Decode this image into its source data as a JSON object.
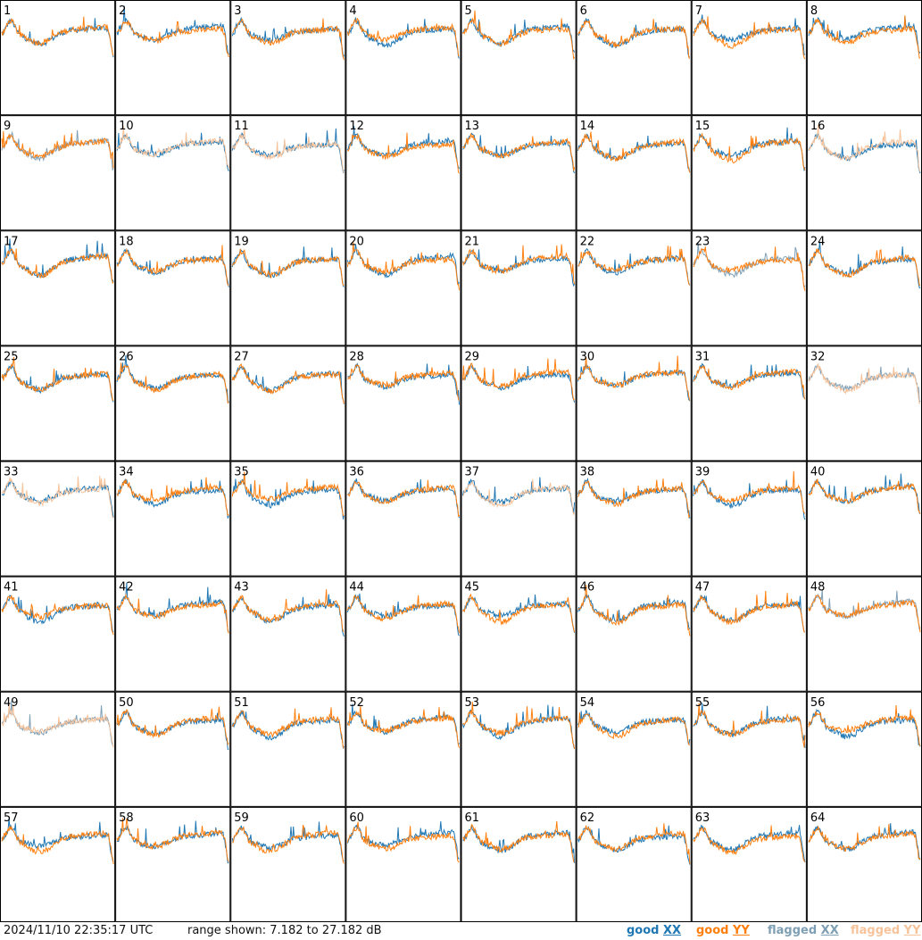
{
  "footer": {
    "timestamp": "2024/11/10 22:35:17 UTC",
    "range": "range shown: 7.182 to 27.182 dB"
  },
  "legend": [
    {
      "label": "good",
      "pol": "XX",
      "color": "#1f77b4"
    },
    {
      "label": "good",
      "pol": "YY",
      "color": "#ff7f0e"
    },
    {
      "label": "flagged",
      "pol": "XX",
      "color": "#7f9fb5"
    },
    {
      "label": "flagged",
      "pol": "YY",
      "color": "#f7c39b"
    }
  ],
  "chart_data": {
    "type": "line",
    "grid": {
      "rows": 8,
      "cols": 8
    },
    "ylim": [
      7.182,
      27.182
    ],
    "yunit": "dB",
    "panels": [
      {
        "id": "1",
        "xx": "good",
        "yy": "good"
      },
      {
        "id": "2",
        "xx": "good",
        "yy": "good"
      },
      {
        "id": "3",
        "xx": "good",
        "yy": "good"
      },
      {
        "id": "4",
        "xx": "good",
        "yy": "good"
      },
      {
        "id": "5",
        "xx": "good",
        "yy": "good"
      },
      {
        "id": "6",
        "xx": "good",
        "yy": "good"
      },
      {
        "id": "7",
        "xx": "good",
        "yy": "good"
      },
      {
        "id": "8",
        "xx": "good",
        "yy": "good"
      },
      {
        "id": "9",
        "xx": "flagged",
        "yy": "good"
      },
      {
        "id": "10",
        "xx": "good",
        "yy": "flagged"
      },
      {
        "id": "11",
        "xx": "good",
        "yy": "flagged"
      },
      {
        "id": "12",
        "xx": "good",
        "yy": "good"
      },
      {
        "id": "13",
        "xx": "good",
        "yy": "good"
      },
      {
        "id": "14",
        "xx": "good",
        "yy": "good"
      },
      {
        "id": "15",
        "xx": "good",
        "yy": "good"
      },
      {
        "id": "16",
        "xx": "good",
        "yy": "flagged"
      },
      {
        "id": "17",
        "xx": "good",
        "yy": "good"
      },
      {
        "id": "18",
        "xx": "good",
        "yy": "good"
      },
      {
        "id": "19",
        "xx": "good",
        "yy": "good"
      },
      {
        "id": "20",
        "xx": "good",
        "yy": "good"
      },
      {
        "id": "21",
        "xx": "good",
        "yy": "good"
      },
      {
        "id": "22",
        "xx": "good",
        "yy": "good"
      },
      {
        "id": "23",
        "xx": "flagged",
        "yy": "good"
      },
      {
        "id": "24",
        "xx": "good",
        "yy": "good"
      },
      {
        "id": "25",
        "xx": "good",
        "yy": "good"
      },
      {
        "id": "26",
        "xx": "good",
        "yy": "good"
      },
      {
        "id": "27",
        "xx": "good",
        "yy": "good"
      },
      {
        "id": "28",
        "xx": "good",
        "yy": "good"
      },
      {
        "id": "29",
        "xx": "good",
        "yy": "good"
      },
      {
        "id": "30",
        "xx": "good",
        "yy": "good"
      },
      {
        "id": "31",
        "xx": "good",
        "yy": "good"
      },
      {
        "id": "32",
        "xx": "flagged",
        "yy": "flagged"
      },
      {
        "id": "33",
        "xx": "good",
        "yy": "flagged"
      },
      {
        "id": "34",
        "xx": "good",
        "yy": "good"
      },
      {
        "id": "35",
        "xx": "good",
        "yy": "good"
      },
      {
        "id": "36",
        "xx": "good",
        "yy": "good"
      },
      {
        "id": "37",
        "xx": "good",
        "yy": "flagged"
      },
      {
        "id": "38",
        "xx": "good",
        "yy": "good"
      },
      {
        "id": "39",
        "xx": "good",
        "yy": "good"
      },
      {
        "id": "40",
        "xx": "good",
        "yy": "good"
      },
      {
        "id": "41",
        "xx": "good",
        "yy": "good"
      },
      {
        "id": "42",
        "xx": "good",
        "yy": "good"
      },
      {
        "id": "43",
        "xx": "good",
        "yy": "good"
      },
      {
        "id": "44",
        "xx": "good",
        "yy": "good"
      },
      {
        "id": "45",
        "xx": "good",
        "yy": "good"
      },
      {
        "id": "46",
        "xx": "good",
        "yy": "good"
      },
      {
        "id": "47",
        "xx": "good",
        "yy": "good"
      },
      {
        "id": "48",
        "xx": "flagged",
        "yy": "good"
      },
      {
        "id": "49",
        "xx": "flagged",
        "yy": "flagged"
      },
      {
        "id": "50",
        "xx": "good",
        "yy": "good"
      },
      {
        "id": "51",
        "xx": "good",
        "yy": "good"
      },
      {
        "id": "52",
        "xx": "good",
        "yy": "good"
      },
      {
        "id": "53",
        "xx": "good",
        "yy": "good"
      },
      {
        "id": "54",
        "xx": "good",
        "yy": "good"
      },
      {
        "id": "55",
        "xx": "good",
        "yy": "good"
      },
      {
        "id": "56",
        "xx": "good",
        "yy": "good"
      },
      {
        "id": "57",
        "xx": "good",
        "yy": "good"
      },
      {
        "id": "58",
        "xx": "good",
        "yy": "good"
      },
      {
        "id": "59",
        "xx": "good",
        "yy": "good"
      },
      {
        "id": "60",
        "xx": "good",
        "yy": "good"
      },
      {
        "id": "61",
        "xx": "good",
        "yy": "good"
      },
      {
        "id": "62",
        "xx": "good",
        "yy": "good"
      },
      {
        "id": "63",
        "xx": "good",
        "yy": "good"
      },
      {
        "id": "64",
        "xx": "good",
        "yy": "good"
      }
    ]
  }
}
